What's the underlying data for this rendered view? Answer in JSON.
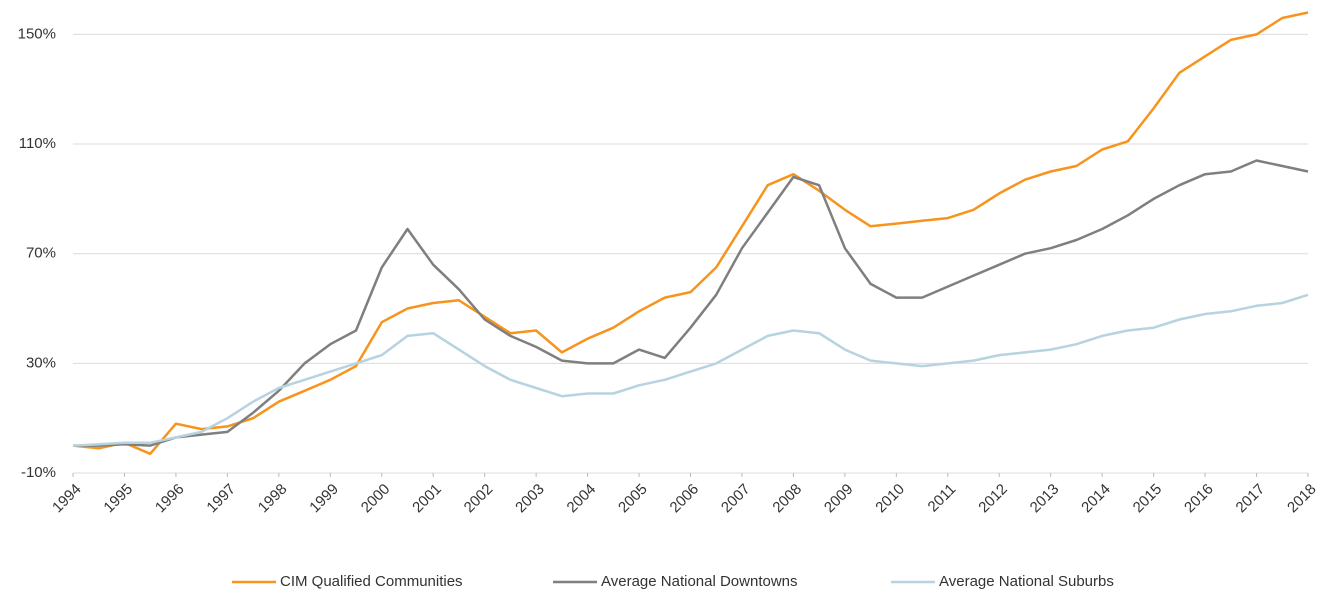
{
  "chart_data": {
    "type": "line",
    "x": [
      1994,
      1994.5,
      1995,
      1995.5,
      1996,
      1996.5,
      1997,
      1997.5,
      1998,
      1998.5,
      1999,
      1999.5,
      2000,
      2000.5,
      2001,
      2001.5,
      2002,
      2002.5,
      2003,
      2003.5,
      2004,
      2004.5,
      2005,
      2005.5,
      2006,
      2006.5,
      2007,
      2007.5,
      2008,
      2008.5,
      2009,
      2009.5,
      2010,
      2010.5,
      2011,
      2011.5,
      2012,
      2012.5,
      2013,
      2013.5,
      2014,
      2014.5,
      2015,
      2015.5,
      2016,
      2016.5,
      2017,
      2017.5,
      2018
    ],
    "series": [
      {
        "name": "CIM Qualified Communities",
        "color": "#f7941d",
        "values": [
          0,
          -1,
          1,
          -3,
          8,
          6,
          7,
          10,
          16,
          20,
          24,
          29,
          45,
          50,
          52,
          53,
          47,
          41,
          42,
          34,
          39,
          43,
          49,
          54,
          56,
          65,
          80,
          95,
          99,
          93,
          86,
          80,
          81,
          82,
          83,
          86,
          92,
          97,
          100,
          102,
          108,
          111,
          123,
          136,
          142,
          148,
          150,
          156,
          158
        ]
      },
      {
        "name": "Average National Downtowns",
        "color": "#7f7f7f",
        "values": [
          0,
          0,
          0.5,
          0,
          3,
          4,
          5,
          12,
          20,
          30,
          37,
          42,
          65,
          79,
          66,
          57,
          46,
          40,
          36,
          31,
          30,
          30,
          35,
          32,
          43,
          55,
          72,
          85,
          98,
          95,
          72,
          59,
          54,
          54,
          58,
          62,
          66,
          70,
          72,
          75,
          79,
          84,
          90,
          95,
          99,
          100,
          104,
          102,
          100
        ]
      },
      {
        "name": "Average National Suburbs",
        "color": "#b7d3e0",
        "values": [
          0,
          0.5,
          1,
          1,
          3,
          5,
          10,
          16,
          21,
          24,
          27,
          30,
          33,
          40,
          41,
          35,
          29,
          24,
          21,
          18,
          19,
          19,
          22,
          24,
          27,
          30,
          35,
          40,
          42,
          41,
          35,
          31,
          30,
          29,
          30,
          31,
          33,
          34,
          35,
          37,
          40,
          42,
          43,
          46,
          48,
          49,
          51,
          52,
          55
        ]
      }
    ],
    "xlim": [
      1994,
      2018
    ],
    "xticks": [
      1994,
      1995,
      1996,
      1997,
      1998,
      1999,
      2000,
      2001,
      2002,
      2003,
      2004,
      2005,
      2006,
      2007,
      2008,
      2009,
      2010,
      2011,
      2012,
      2013,
      2014,
      2015,
      2016,
      2017,
      2018
    ],
    "ylim": [
      -10,
      160
    ],
    "yticks": [
      {
        "value": -10,
        "label": "-10%"
      },
      {
        "value": 30,
        "label": "30%"
      },
      {
        "value": 70,
        "label": "70%"
      },
      {
        "value": 110,
        "label": "110%"
      },
      {
        "value": 150,
        "label": "150%"
      }
    ],
    "grid": true,
    "legend": "bottom"
  }
}
